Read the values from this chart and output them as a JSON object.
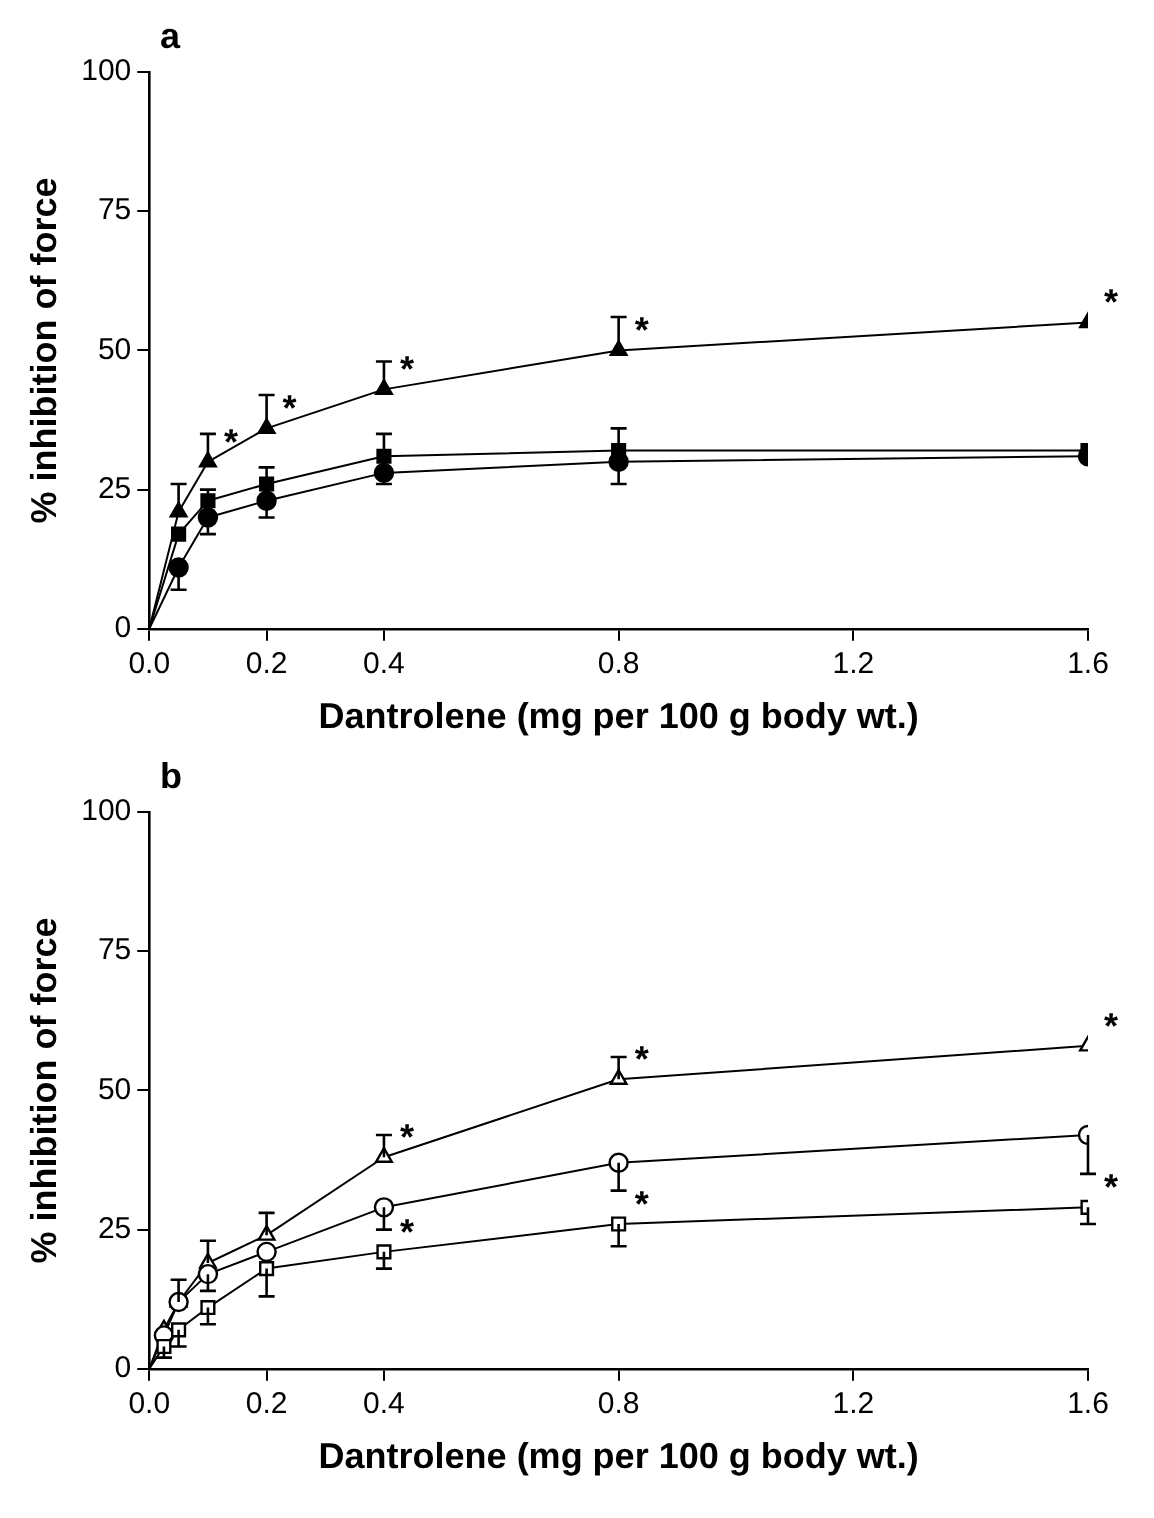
{
  "chart_data": [
    {
      "type": "line",
      "title": "a",
      "xlabel": "Dantrolene (mg per 100 g body wt.)",
      "ylabel": "% inhibition of force",
      "xlim": [
        0,
        1.6
      ],
      "xticks": [
        {
          "value": 0,
          "label": "0.0"
        },
        0.2,
        0.4,
        0.8,
        1.2,
        1.6
      ],
      "ylim": [
        0,
        100
      ],
      "yticks": [
        0,
        25,
        50,
        75,
        100
      ],
      "grid": false,
      "legend": false,
      "line_style": "solid",
      "series": [
        {
          "marker": "triangle",
          "color": "#000000",
          "x": [
            0,
            0.05,
            0.1,
            0.2,
            0.4,
            0.8,
            1.6
          ],
          "values": [
            0,
            21,
            30,
            36,
            43,
            50,
            55
          ],
          "errors": [
            null,
            [
              21,
              26
            ],
            [
              30,
              35
            ],
            [
              36,
              42
            ],
            [
              43,
              48
            ],
            [
              50,
              56
            ],
            null
          ]
        },
        {
          "marker": "square",
          "color": "#000000",
          "x": [
            0,
            0.05,
            0.1,
            0.2,
            0.4,
            0.8,
            1.6
          ],
          "values": [
            0,
            17,
            23,
            26,
            31,
            32,
            32
          ],
          "errors": [
            null,
            null,
            [
              23,
              25
            ],
            [
              26,
              29
            ],
            [
              31,
              35
            ],
            [
              32,
              36
            ],
            null
          ]
        },
        {
          "marker": "circle",
          "color": "#000000",
          "x": [
            0,
            0.05,
            0.1,
            0.2,
            0.4,
            0.8,
            1.6
          ],
          "values": [
            0,
            11,
            20,
            23,
            28,
            30,
            31
          ],
          "errors": [
            null,
            [
              7,
              11
            ],
            [
              17,
              20
            ],
            [
              20,
              23
            ],
            [
              26,
              28
            ],
            [
              26,
              30
            ],
            null
          ]
        }
      ],
      "annotations": [
        {
          "text": "*",
          "x": 0.1,
          "y": 30
        },
        {
          "text": "*",
          "x": 0.2,
          "y": 36
        },
        {
          "text": "*",
          "x": 0.4,
          "y": 43
        },
        {
          "text": "*",
          "x": 0.8,
          "y": 50
        },
        {
          "text": "*",
          "x": 1.6,
          "y": 55
        }
      ]
    },
    {
      "type": "line",
      "title": "b",
      "xlabel": "Dantrolene (mg per 100 g body wt.)",
      "ylabel": "% inhibition of force",
      "xlim": [
        0,
        1.6
      ],
      "xticks": [
        {
          "value": 0,
          "label": "0.0"
        },
        0.2,
        0.4,
        0.8,
        1.2,
        1.6
      ],
      "ylim": [
        0,
        100
      ],
      "yticks": [
        0,
        25,
        50,
        75,
        100
      ],
      "grid": false,
      "legend": false,
      "line_style": "solid",
      "series": [
        {
          "marker": "triangle",
          "color": "#000000",
          "x": [
            0,
            0.025,
            0.05,
            0.1,
            0.2,
            0.4,
            0.8,
            1.6
          ],
          "values": [
            0,
            7,
            12,
            19,
            24,
            38,
            52,
            58
          ],
          "errors": [
            null,
            null,
            [
              12,
              16
            ],
            [
              19,
              23
            ],
            [
              24,
              28
            ],
            [
              38,
              42
            ],
            [
              52,
              56
            ],
            null
          ]
        },
        {
          "marker": "circle",
          "color": "#000000",
          "x": [
            0,
            0.025,
            0.05,
            0.1,
            0.2,
            0.4,
            0.8,
            1.6
          ],
          "values": [
            0,
            6,
            12,
            17,
            21,
            29,
            37,
            42
          ],
          "errors": [
            null,
            null,
            null,
            [
              14,
              17
            ],
            null,
            [
              25,
              29
            ],
            [
              32,
              37
            ],
            [
              35,
              42
            ]
          ]
        },
        {
          "marker": "square",
          "color": "#000000",
          "x": [
            0,
            0.025,
            0.05,
            0.1,
            0.2,
            0.4,
            0.8,
            1.6
          ],
          "values": [
            0,
            4,
            7,
            11,
            18,
            21,
            26,
            29
          ],
          "errors": [
            null,
            [
              2,
              4
            ],
            [
              4,
              7
            ],
            [
              8,
              11
            ],
            [
              13,
              18
            ],
            [
              18,
              21
            ],
            [
              22,
              26
            ],
            [
              26,
              29
            ]
          ]
        }
      ],
      "annotations": [
        {
          "text": "*",
          "x": 0.4,
          "y": 38
        },
        {
          "text": "*",
          "x": 0.8,
          "y": 52
        },
        {
          "text": "*",
          "x": 1.6,
          "y": 58
        },
        {
          "text": "*",
          "x": 0.4,
          "y": 21
        },
        {
          "text": "*",
          "x": 0.8,
          "y": 26
        },
        {
          "text": "*",
          "x": 1.6,
          "y": 29
        }
      ]
    }
  ]
}
